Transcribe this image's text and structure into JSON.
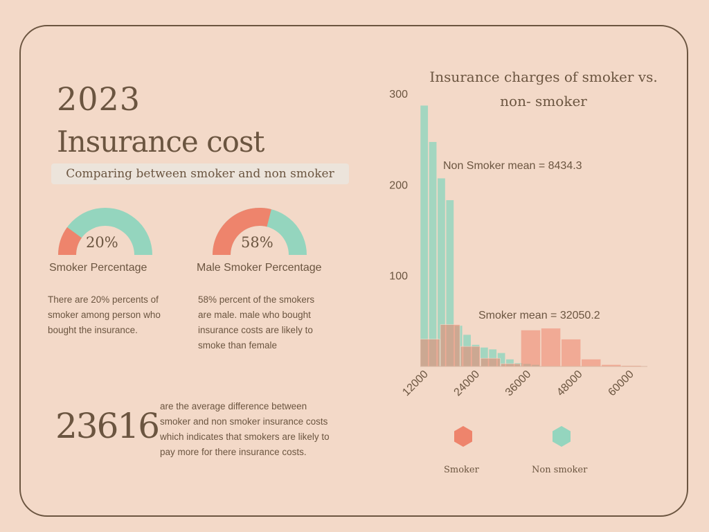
{
  "header": {
    "year": "2023",
    "title": "Insurance cost",
    "subtitle": "Comparing between smoker and non smoker"
  },
  "gauges": [
    {
      "value_text": "20%",
      "percent": 20,
      "label": "Smoker Percentage",
      "description_lines": [
        "There are 20% percents of",
        "smoker among person who",
        "bought the insurance."
      ]
    },
    {
      "value_text": "58%",
      "percent": 58,
      "label": "Male Smoker Percentage",
      "description_lines": [
        "58% percent of the smokers",
        "are male. male who bought",
        "insurance costs are likely to",
        "smoke than female"
      ]
    }
  ],
  "difference": {
    "value": "23616",
    "text_lines": [
      "are the average difference between",
      "smoker and non smoker insurance costs",
      "which indicates that smokers are likely to",
      "pay more for there insurance costs."
    ]
  },
  "colors": {
    "smoker": "#ee846c",
    "non_smoker": "#94d5be",
    "text": "#6b5540",
    "background": "#f3d9c8"
  },
  "chart_data": {
    "type": "bar",
    "title_lines": [
      "Insurance charges of smoker vs.",
      "non- smoker"
    ],
    "xlim": [
      12000,
      65000
    ],
    "ylim": [
      0,
      300
    ],
    "x_ticks": [
      12000,
      24000,
      36000,
      48000,
      60000
    ],
    "x_tick_labels": [
      "12000",
      "24000",
      "36000",
      "48000",
      "60000"
    ],
    "y_ticks": [
      100,
      200,
      300
    ],
    "y_tick_labels": [
      "100",
      "200",
      "300"
    ],
    "series": [
      {
        "name": "Non smoker",
        "bin_width": 2000,
        "bins_start": [
          12000,
          14000,
          16000,
          18000,
          20000,
          22000,
          24000,
          26000,
          28000,
          30000,
          32000,
          34000,
          36000,
          38000
        ],
        "values": [
          287,
          247,
          207,
          183,
          45,
          35,
          24,
          21,
          19,
          15,
          8,
          4,
          3,
          2
        ]
      },
      {
        "name": "Smoker",
        "bin_width": 4700,
        "bins_start": [
          12000,
          16700,
          21400,
          26100,
          30800,
          35500,
          40200,
          44900,
          49600,
          54300,
          59000
        ],
        "values": [
          30,
          46,
          22,
          9,
          3,
          40,
          42,
          30,
          8,
          2,
          1
        ]
      }
    ],
    "annotations": [
      {
        "text": "Non Smoker mean = 8434.3"
      },
      {
        "text": "Smoker mean = 32050.2"
      }
    ],
    "legend": [
      {
        "label": "Smoker",
        "color": "#ee846c"
      },
      {
        "label": "Non smoker",
        "color": "#94d5be"
      }
    ]
  }
}
